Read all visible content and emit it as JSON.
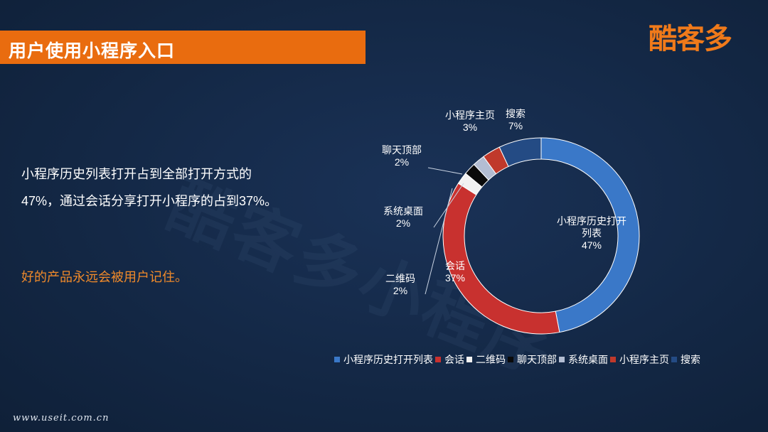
{
  "slide": {
    "title": "用户使用小程序入口",
    "logo": "酷客多",
    "watermark": "酷客多小程序",
    "body": "小程序历史列表打开占到全部打开方式的47%，通过会话分享打开小程序的占到37%。",
    "highlight": "好的产品永远会被用户记住。",
    "footer": "www.useit.com.cn"
  },
  "chart_data": {
    "type": "pie",
    "donut": true,
    "legend_position": "bottom",
    "series": [
      {
        "name": "小程序历史打开列表",
        "label": "小程序历史打开\n列表",
        "value": 47,
        "pct_label": "47%",
        "color": "#3a78c8"
      },
      {
        "name": "会话",
        "label": "会话",
        "value": 37,
        "pct_label": "37%",
        "color": "#c8312f"
      },
      {
        "name": "二维码",
        "label": "二维码",
        "value": 2,
        "pct_label": "2%",
        "color": "#f2f2f2"
      },
      {
        "name": "聊天顶部",
        "label": "聊天顶部",
        "value": 2,
        "pct_label": "2%",
        "color": "#0a0a0a"
      },
      {
        "name": "系统桌面",
        "label": "系统桌面",
        "value": 2,
        "pct_label": "2%",
        "color": "#b3bdd2"
      },
      {
        "name": "小程序主页",
        "label": "小程序主页",
        "value": 3,
        "pct_label": "3%",
        "color": "#c0392b"
      },
      {
        "name": "搜索",
        "label": "搜索",
        "value": 7,
        "pct_label": "7%",
        "color": "#244b84"
      }
    ]
  }
}
